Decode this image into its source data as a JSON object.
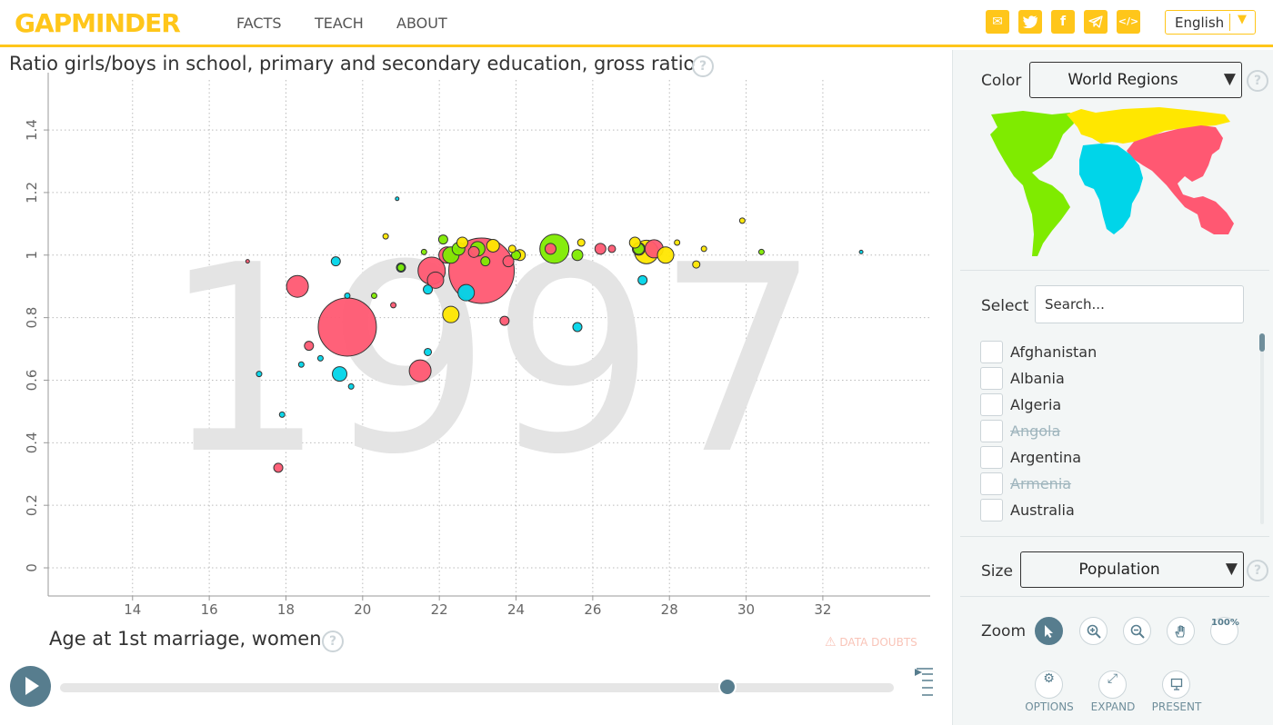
{
  "header": {
    "logo": "GAPMINDER",
    "nav": [
      "FACTS",
      "TEACH",
      "ABOUT"
    ],
    "share_icons": [
      "mail-icon",
      "twitter-icon",
      "facebook-icon",
      "telegram-icon",
      "embed-icon"
    ],
    "language": "English"
  },
  "chart": {
    "title": "Ratio girls/boys in school, primary and secondary education, gross ratio",
    "xlabel": "Age at 1st marriage, women",
    "year": "1997",
    "data_doubts": "DATA DOUBTS"
  },
  "chart_data": {
    "type": "scatter",
    "title": "Ratio girls/boys in school, primary and secondary education, gross ratio",
    "xlabel": "Age at 1st marriage, women",
    "ylabel": "Ratio girls/boys in school, primary and secondary education, gross ratio",
    "year": 1997,
    "xlim": [
      11.8,
      34.8
    ],
    "ylim": [
      -0.09,
      1.56
    ],
    "xticks": [
      "14",
      "16",
      "18",
      "20",
      "22",
      "24",
      "26",
      "28",
      "30",
      "32"
    ],
    "yticks": [
      "0",
      "0.2",
      "0.4",
      "0.6",
      "0.8",
      "1",
      "1.2",
      "1.4"
    ],
    "grid": true,
    "color_legend": {
      "Asia": "#ff5872",
      "Africa": "#00d5e9",
      "Americas": "#7feb00",
      "Europe": "#ffe700"
    },
    "size_by": "Population",
    "points": [
      {
        "x": 19.6,
        "y": 0.77,
        "r": 32,
        "region": "Asia"
      },
      {
        "x": 23.1,
        "y": 0.95,
        "r": 36,
        "region": "Asia"
      },
      {
        "x": 21.8,
        "y": 0.95,
        "r": 15,
        "region": "Asia"
      },
      {
        "x": 22.2,
        "y": 1.0,
        "r": 9,
        "region": "Asia"
      },
      {
        "x": 18.3,
        "y": 0.9,
        "r": 12,
        "region": "Asia"
      },
      {
        "x": 21.5,
        "y": 0.63,
        "r": 12,
        "region": "Asia"
      },
      {
        "x": 21.9,
        "y": 0.92,
        "r": 9,
        "region": "Asia"
      },
      {
        "x": 17.8,
        "y": 0.32,
        "r": 5,
        "region": "Asia"
      },
      {
        "x": 18.6,
        "y": 0.71,
        "r": 5,
        "region": "Asia"
      },
      {
        "x": 23.7,
        "y": 0.79,
        "r": 5,
        "region": "Asia"
      },
      {
        "x": 23.8,
        "y": 0.98,
        "r": 6,
        "region": "Asia"
      },
      {
        "x": 24.9,
        "y": 1.02,
        "r": 6,
        "region": "Asia"
      },
      {
        "x": 26.2,
        "y": 1.02,
        "r": 6,
        "region": "Asia"
      },
      {
        "x": 27.6,
        "y": 1.02,
        "r": 10,
        "region": "Asia"
      },
      {
        "x": 27.2,
        "y": 1.02,
        "r": 7,
        "region": "Asia"
      },
      {
        "x": 22.9,
        "y": 1.01,
        "r": 6,
        "region": "Asia"
      },
      {
        "x": 26.5,
        "y": 1.02,
        "r": 4,
        "region": "Asia"
      },
      {
        "x": 20.8,
        "y": 0.84,
        "r": 3,
        "region": "Asia"
      },
      {
        "x": 25.0,
        "y": 1.02,
        "r": 16,
        "region": "Americas"
      },
      {
        "x": 22.3,
        "y": 1.0,
        "r": 9,
        "region": "Americas"
      },
      {
        "x": 23.0,
        "y": 1.02,
        "r": 8,
        "region": "Americas"
      },
      {
        "x": 22.5,
        "y": 1.02,
        "r": 7,
        "region": "Americas"
      },
      {
        "x": 25.6,
        "y": 1.0,
        "r": 6,
        "region": "Americas"
      },
      {
        "x": 24.0,
        "y": 1.0,
        "r": 5,
        "region": "Americas"
      },
      {
        "x": 22.1,
        "y": 1.05,
        "r": 5,
        "region": "Americas"
      },
      {
        "x": 21.0,
        "y": 0.96,
        "r": 4,
        "region": "Americas"
      },
      {
        "x": 20.3,
        "y": 0.87,
        "r": 3,
        "region": "Americas"
      },
      {
        "x": 23.2,
        "y": 0.98,
        "r": 5,
        "region": "Americas"
      },
      {
        "x": 27.2,
        "y": 1.02,
        "r": 6,
        "region": "Americas"
      },
      {
        "x": 21.6,
        "y": 1.01,
        "r": 3,
        "region": "Americas"
      },
      {
        "x": 22.3,
        "y": 0.81,
        "r": 9,
        "region": "Europe"
      },
      {
        "x": 23.4,
        "y": 1.03,
        "r": 7,
        "region": "Europe"
      },
      {
        "x": 27.4,
        "y": 1.01,
        "r": 13,
        "region": "Europe"
      },
      {
        "x": 27.9,
        "y": 1.0,
        "r": 9,
        "region": "Europe"
      },
      {
        "x": 27.1,
        "y": 1.04,
        "r": 6,
        "region": "Europe"
      },
      {
        "x": 24.1,
        "y": 1.0,
        "r": 6,
        "region": "Europe"
      },
      {
        "x": 25.7,
        "y": 1.04,
        "r": 4,
        "region": "Europe"
      },
      {
        "x": 28.7,
        "y": 0.97,
        "r": 4,
        "region": "Europe"
      },
      {
        "x": 29.9,
        "y": 1.11,
        "r": 3,
        "region": "Europe"
      },
      {
        "x": 28.2,
        "y": 1.04,
        "r": 3,
        "region": "Europe"
      },
      {
        "x": 22.6,
        "y": 1.04,
        "r": 6,
        "region": "Europe"
      },
      {
        "x": 20.6,
        "y": 1.06,
        "r": 3,
        "region": "Europe"
      },
      {
        "x": 23.9,
        "y": 1.02,
        "r": 4,
        "region": "Europe"
      },
      {
        "x": 28.9,
        "y": 1.02,
        "r": 3,
        "region": "Europe"
      },
      {
        "x": 22.7,
        "y": 0.88,
        "r": 9,
        "region": "Africa"
      },
      {
        "x": 19.4,
        "y": 0.62,
        "r": 8,
        "region": "Africa"
      },
      {
        "x": 21.7,
        "y": 0.89,
        "r": 5,
        "region": "Africa"
      },
      {
        "x": 25.6,
        "y": 0.77,
        "r": 5,
        "region": "Africa"
      },
      {
        "x": 19.3,
        "y": 0.98,
        "r": 5,
        "region": "Africa"
      },
      {
        "x": 27.3,
        "y": 0.92,
        "r": 5,
        "region": "Africa"
      },
      {
        "x": 21.0,
        "y": 0.96,
        "r": 5,
        "region": "Africa"
      },
      {
        "x": 18.4,
        "y": 0.65,
        "r": 3,
        "region": "Africa"
      },
      {
        "x": 19.7,
        "y": 0.58,
        "r": 3,
        "region": "Africa"
      },
      {
        "x": 17.3,
        "y": 0.62,
        "r": 3,
        "region": "Africa"
      },
      {
        "x": 17.9,
        "y": 0.49,
        "r": 3,
        "region": "Africa"
      },
      {
        "x": 18.9,
        "y": 0.67,
        "r": 3,
        "region": "Africa"
      },
      {
        "x": 19.6,
        "y": 0.87,
        "r": 3,
        "region": "Africa"
      },
      {
        "x": 21.7,
        "y": 0.69,
        "r": 4,
        "region": "Africa"
      },
      {
        "x": 20.9,
        "y": 1.18,
        "r": 2,
        "region": "Africa"
      },
      {
        "x": 30.4,
        "y": 1.01,
        "r": 3,
        "region": "Americas"
      },
      {
        "x": 33.0,
        "y": 1.01,
        "r": 2,
        "region": "Africa"
      },
      {
        "x": 17.0,
        "y": 0.98,
        "r": 2,
        "region": "Asia"
      }
    ]
  },
  "timeslider": {
    "value": 1997,
    "range": [
      1800,
      2018
    ],
    "progress": 0.8
  },
  "side": {
    "color_label": "Color",
    "color_value": "World Regions",
    "select_label": "Select",
    "search_placeholder": "Search...",
    "countries": [
      {
        "name": "Afghanistan",
        "available": true
      },
      {
        "name": "Albania",
        "available": true
      },
      {
        "name": "Algeria",
        "available": true
      },
      {
        "name": "Angola",
        "available": false
      },
      {
        "name": "Argentina",
        "available": true
      },
      {
        "name": "Armenia",
        "available": false
      },
      {
        "name": "Australia",
        "available": true
      }
    ],
    "size_label": "Size",
    "size_value": "Population",
    "zoom_label": "Zoom",
    "zoom_100": "100%",
    "dialogs": [
      "OPTIONS",
      "EXPAND",
      "PRESENT"
    ]
  }
}
